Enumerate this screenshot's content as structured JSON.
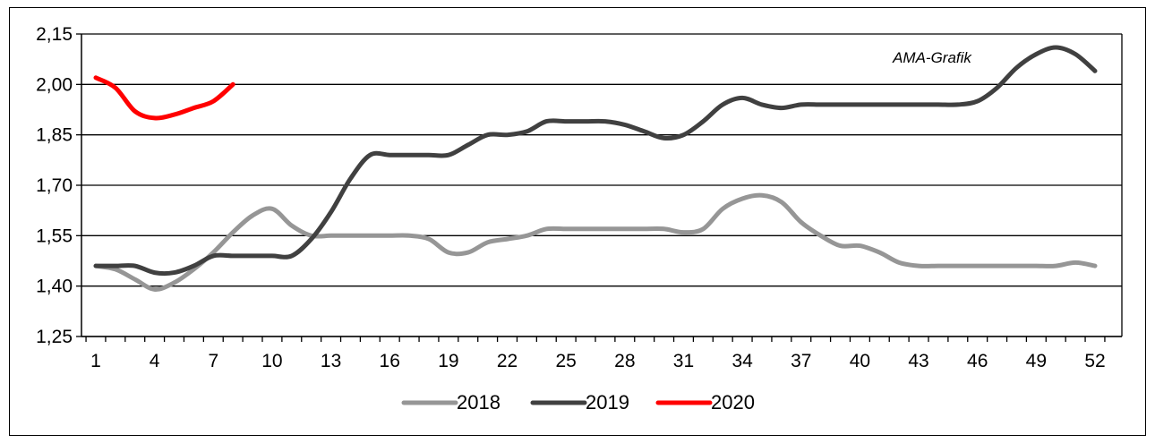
{
  "chart_data": {
    "type": "line",
    "annotation": "AMA-Grafik",
    "x_ticks": [
      1,
      4,
      7,
      10,
      13,
      16,
      19,
      22,
      25,
      28,
      31,
      34,
      37,
      40,
      43,
      46,
      49,
      52
    ],
    "y_ticks": [
      "1,25",
      "1,40",
      "1,55",
      "1,70",
      "1,85",
      "2,00",
      "2,15"
    ],
    "ylim": [
      1.25,
      2.15
    ],
    "xlim": [
      1,
      52
    ],
    "grid": "horizontal",
    "legend_position": "bottom",
    "series": [
      {
        "name": "2018",
        "color": "#969696",
        "x": [
          1,
          2,
          3,
          4,
          5,
          6,
          7,
          8,
          9,
          10,
          11,
          12,
          13,
          14,
          15,
          16,
          17,
          18,
          19,
          20,
          21,
          22,
          23,
          24,
          25,
          26,
          27,
          28,
          29,
          30,
          31,
          32,
          33,
          34,
          35,
          36,
          37,
          38,
          39,
          40,
          41,
          42,
          43,
          44,
          45,
          46,
          47,
          48,
          49,
          50,
          51,
          52
        ],
        "values": [
          1.46,
          1.45,
          1.42,
          1.39,
          1.41,
          1.45,
          1.5,
          1.56,
          1.61,
          1.63,
          1.58,
          1.55,
          1.55,
          1.55,
          1.55,
          1.55,
          1.55,
          1.54,
          1.5,
          1.5,
          1.53,
          1.54,
          1.55,
          1.57,
          1.57,
          1.57,
          1.57,
          1.57,
          1.57,
          1.57,
          1.56,
          1.57,
          1.63,
          1.66,
          1.67,
          1.65,
          1.59,
          1.55,
          1.52,
          1.52,
          1.5,
          1.47,
          1.46,
          1.46,
          1.46,
          1.46,
          1.46,
          1.46,
          1.46,
          1.46,
          1.47,
          1.46
        ]
      },
      {
        "name": "2019",
        "color": "#404040",
        "x": [
          1,
          2,
          3,
          4,
          5,
          6,
          7,
          8,
          9,
          10,
          11,
          12,
          13,
          14,
          15,
          16,
          17,
          18,
          19,
          20,
          21,
          22,
          23,
          24,
          25,
          26,
          27,
          28,
          29,
          30,
          31,
          32,
          33,
          34,
          35,
          36,
          37,
          38,
          39,
          40,
          41,
          42,
          43,
          44,
          45,
          46,
          47,
          48,
          49,
          50,
          51,
          52
        ],
        "values": [
          1.46,
          1.46,
          1.46,
          1.44,
          1.44,
          1.46,
          1.49,
          1.49,
          1.49,
          1.49,
          1.49,
          1.54,
          1.62,
          1.72,
          1.79,
          1.79,
          1.79,
          1.79,
          1.79,
          1.82,
          1.85,
          1.85,
          1.86,
          1.89,
          1.89,
          1.89,
          1.89,
          1.88,
          1.86,
          1.84,
          1.85,
          1.89,
          1.94,
          1.96,
          1.94,
          1.93,
          1.94,
          1.94,
          1.94,
          1.94,
          1.94,
          1.94,
          1.94,
          1.94,
          1.94,
          1.95,
          1.99,
          2.05,
          2.09,
          2.11,
          2.09,
          2.04
        ]
      },
      {
        "name": "2020",
        "color": "#ff0000",
        "x": [
          1,
          2,
          3,
          4,
          5,
          6,
          7,
          8
        ],
        "values": [
          2.02,
          1.99,
          1.92,
          1.9,
          1.91,
          1.93,
          1.95,
          2.0
        ]
      }
    ]
  }
}
